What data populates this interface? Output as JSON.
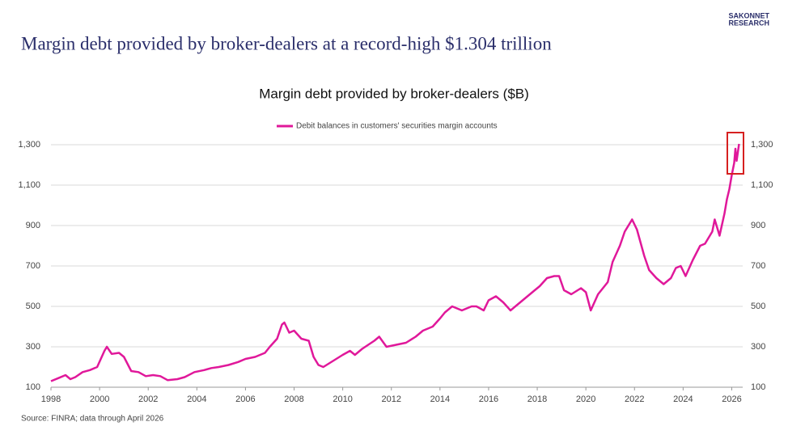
{
  "header": {
    "title": "Margin debt provided by broker-dealers at a record-high $1.304 trillion",
    "logo": [
      "SAKONNET",
      "RESEARCH"
    ]
  },
  "chart_data": {
    "type": "line",
    "title": "Margin debt provided by broker-dealers ($B)",
    "x": [
      1998.0,
      1998.3,
      1998.6,
      1998.8,
      1999.0,
      1999.3,
      1999.6,
      1999.9,
      2000.2,
      2000.3,
      2000.5,
      2000.8,
      2001.0,
      2001.3,
      2001.6,
      2001.9,
      2002.2,
      2002.5,
      2002.8,
      2003.2,
      2003.5,
      2003.9,
      2004.3,
      2004.6,
      2004.9,
      2005.3,
      2005.7,
      2006.0,
      2006.4,
      2006.8,
      2007.0,
      2007.3,
      2007.5,
      2007.6,
      2007.8,
      2008.0,
      2008.3,
      2008.6,
      2008.8,
      2009.0,
      2009.2,
      2009.6,
      2010.0,
      2010.3,
      2010.5,
      2010.8,
      2011.3,
      2011.5,
      2011.8,
      2012.2,
      2012.6,
      2013.0,
      2013.3,
      2013.7,
      2014.0,
      2014.2,
      2014.5,
      2014.9,
      2015.3,
      2015.5,
      2015.8,
      2016.0,
      2016.3,
      2016.6,
      2016.9,
      2017.2,
      2017.5,
      2017.9,
      2018.1,
      2018.4,
      2018.7,
      2018.9,
      2019.1,
      2019.4,
      2019.8,
      2020.0,
      2020.2,
      2020.5,
      2020.9,
      2021.1,
      2021.4,
      2021.6,
      2021.8,
      2021.9,
      2022.1,
      2022.4,
      2022.6,
      2022.9,
      2023.2,
      2023.5,
      2023.7,
      2023.9,
      2024.1,
      2024.4,
      2024.7,
      2024.9,
      2025.2,
      2025.3,
      2025.5,
      2025.7,
      2025.8,
      2025.9,
      2026.0,
      2026.1,
      2026.15,
      2026.2,
      2026.3
    ],
    "series": [
      {
        "name": "Debit balances in customers' securities margin accounts",
        "color": "#e0189a",
        "values": [
          130,
          145,
          160,
          140,
          150,
          175,
          185,
          200,
          280,
          300,
          265,
          270,
          250,
          180,
          175,
          155,
          160,
          155,
          135,
          140,
          150,
          175,
          185,
          195,
          200,
          210,
          225,
          240,
          250,
          270,
          300,
          340,
          410,
          420,
          370,
          380,
          340,
          330,
          250,
          210,
          200,
          230,
          260,
          280,
          260,
          290,
          330,
          350,
          300,
          310,
          320,
          350,
          380,
          400,
          440,
          470,
          500,
          480,
          500,
          500,
          480,
          530,
          550,
          520,
          480,
          510,
          540,
          580,
          600,
          640,
          650,
          650,
          580,
          560,
          590,
          570,
          480,
          560,
          620,
          720,
          800,
          870,
          910,
          930,
          880,
          750,
          680,
          640,
          610,
          640,
          690,
          700,
          650,
          730,
          800,
          810,
          870,
          930,
          850,
          960,
          1030,
          1080,
          1150,
          1210,
          1280,
          1220,
          1304
        ]
      }
    ],
    "xlim": [
      1998,
      2026.45
    ],
    "xticks": [
      1998,
      2000,
      2002,
      2004,
      2006,
      2008,
      2010,
      2012,
      2014,
      2016,
      2018,
      2020,
      2022,
      2024,
      2026
    ],
    "ylim": [
      100,
      1380
    ],
    "yticks": [
      {
        "value": 1300,
        "label": "1,300"
      },
      {
        "value": 1100,
        "label": "1,100"
      },
      900,
      700,
      500,
      300,
      100
    ],
    "grid": true,
    "source": "Source: FINRA; data through April 2026"
  }
}
